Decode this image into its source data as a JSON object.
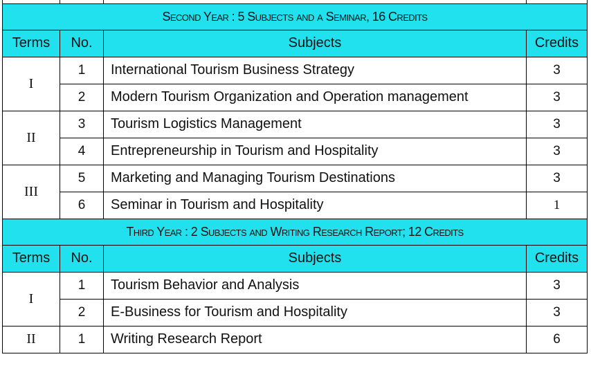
{
  "second_year": {
    "banner": "Second Year : 5 Subjects and a Seminar, 16 Credits",
    "headers": {
      "terms": "Terms",
      "no": "No.",
      "subjects": "Subjects",
      "credits": "Credits"
    },
    "terms": [
      {
        "term": "I",
        "rows": [
          {
            "no": "1",
            "subject": "International Tourism Business Strategy",
            "credits": "3"
          },
          {
            "no": "2",
            "subject": "Modern Tourism Organization and Operation management",
            "credits": "3"
          }
        ]
      },
      {
        "term": "II",
        "rows": [
          {
            "no": "3",
            "subject": "Tourism Logistics Management",
            "credits": "3"
          },
          {
            "no": "4",
            "subject": "Entrepreneurship in Tourism and Hospitality",
            "credits": "3"
          }
        ]
      },
      {
        "term": "III",
        "rows": [
          {
            "no": "5",
            "subject": "Marketing and Managing Tourism Destinations",
            "credits": "3"
          },
          {
            "no": "6",
            "subject": "Seminar in Tourism and Hospitality",
            "credits": "1"
          }
        ]
      }
    ]
  },
  "third_year": {
    "banner": "Third Year : 2 Subjects and Writing Research Report; 12 Credits",
    "headers": {
      "terms": "Terms",
      "no": "No.",
      "subjects": "Subjects",
      "credits": "Credits"
    },
    "terms": [
      {
        "term": "I",
        "rows": [
          {
            "no": "1",
            "subject": "Tourism Behavior and Analysis",
            "credits": "3"
          },
          {
            "no": "2",
            "subject": "E-Business for Tourism and Hospitality",
            "credits": "3"
          }
        ]
      },
      {
        "term": "II",
        "rows": [
          {
            "no": "1",
            "subject": "Writing Research Report",
            "credits": "6"
          }
        ]
      }
    ]
  }
}
